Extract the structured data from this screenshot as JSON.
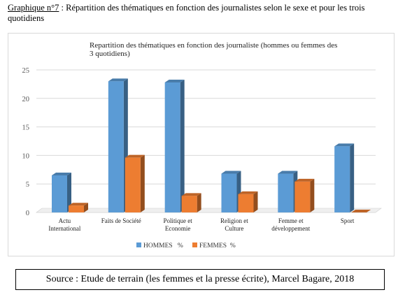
{
  "caption": {
    "label": "Graphique n°7",
    "text": " : Répartition des thématiques en fonction des journalistes selon le sexe et pour les trois quotidiens"
  },
  "source": "Source : Etude de terrain (les femmes et la presse écrite), Marcel Bagare, 2018",
  "colors": {
    "hommes": "#5b9bd5",
    "femmes": "#ed7d31"
  },
  "chart_data": {
    "type": "bar",
    "title_lines": [
      "Repartition des thématiques en fonction des journaliste (hommes ou femmes des",
      "3 quotidiens)"
    ],
    "categories": [
      [
        "Actu",
        "International"
      ],
      [
        "Faits de Société"
      ],
      [
        "Politique et",
        "Economie"
      ],
      [
        "Religion et",
        "Culture"
      ],
      [
        "Femme et",
        "développement"
      ],
      [
        "Sport"
      ]
    ],
    "series": [
      {
        "name": "HOMMES   %",
        "values": [
          6.5,
          23,
          22.8,
          6.8,
          6.8,
          11.6
        ]
      },
      {
        "name": "FEMMES  %",
        "values": [
          1.2,
          9.6,
          2.9,
          3.2,
          5.4,
          0
        ]
      }
    ],
    "ylim": [
      0,
      25
    ],
    "yticks": [
      0,
      5,
      10,
      15,
      20,
      25
    ],
    "grid": true,
    "legend_position": "bottom"
  }
}
